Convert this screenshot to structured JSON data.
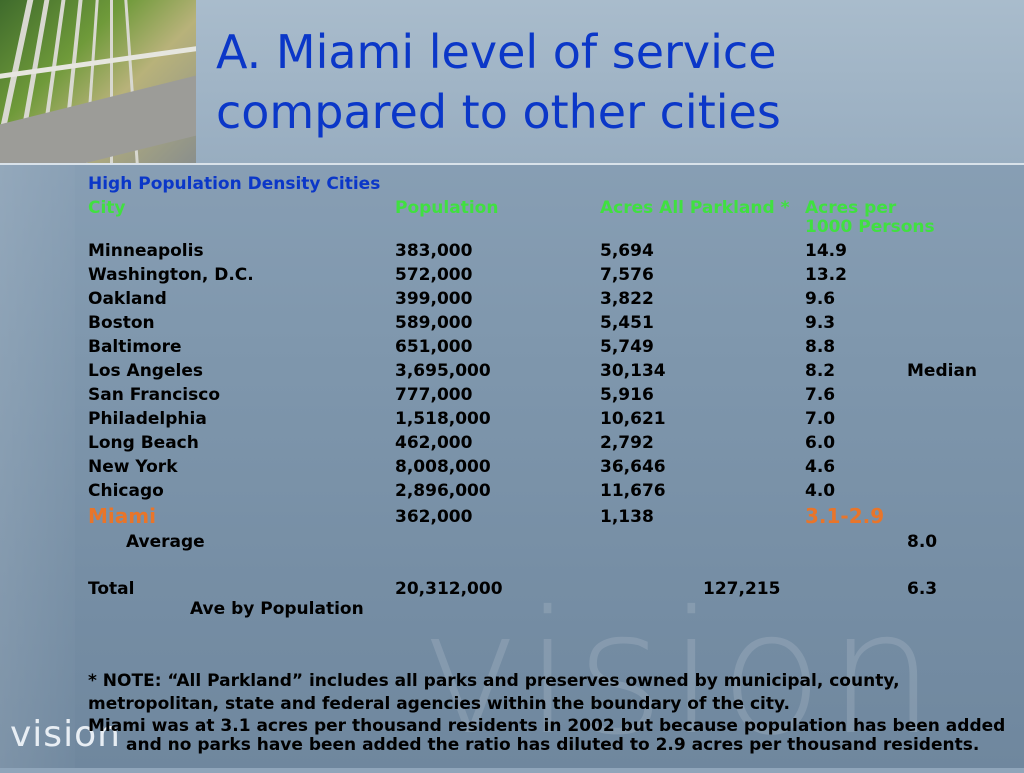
{
  "slide": {
    "title_line1": "A. Miami level of service",
    "title_line2": "compared to other cities",
    "logo": "vision",
    "watermark": "vision"
  },
  "table": {
    "section_heading": "High Population Density Cities",
    "headers": {
      "city": "City",
      "population": "Population",
      "acres": "Acres All Parkland *",
      "per_line1": "Acres per",
      "per_line2": "1000 Persons"
    },
    "rows": [
      {
        "city": "Minneapolis",
        "population": "383,000",
        "acres": "5,694",
        "per": "14.9",
        "note": ""
      },
      {
        "city": "Washington, D.C.",
        "population": "572,000",
        "acres": "7,576",
        "per": "13.2",
        "note": ""
      },
      {
        "city": "Oakland",
        "population": "399,000",
        "acres": "3,822",
        "per": "9.6",
        "note": ""
      },
      {
        "city": "Boston",
        "population": "589,000",
        "acres": "5,451",
        "per": "9.3",
        "note": ""
      },
      {
        "city": "Baltimore",
        "population": "651,000",
        "acres": "5,749",
        "per": "8.8",
        "note": ""
      },
      {
        "city": "Los Angeles",
        "population": "3,695,000",
        "acres": "30,134",
        "per": "8.2",
        "note": "Median"
      },
      {
        "city": "San Francisco",
        "population": "777,000",
        "acres": "5,916",
        "per": "7.6",
        "note": ""
      },
      {
        "city": "Philadelphia",
        "population": "1,518,000",
        "acres": "10,621",
        "per": "7.0",
        "note": ""
      },
      {
        "city": "Long Beach",
        "population": "462,000",
        "acres": "2,792",
        "per": "6.0",
        "note": ""
      },
      {
        "city": "New York",
        "population": "8,008,000",
        "acres": "36,646",
        "per": "4.6",
        "note": ""
      },
      {
        "city": "Chicago",
        "population": "2,896,000",
        "acres": "11,676",
        "per": "4.0",
        "note": ""
      }
    ],
    "miami": {
      "city": "Miami",
      "population": "362,000",
      "acres": "1,138",
      "per": "3.1-2.9"
    },
    "average": {
      "label": "Average",
      "value": "8.0"
    },
    "total": {
      "label": "Total",
      "population": "20,312,000",
      "acres": "127,215",
      "per": "6.3",
      "sublabel": "Ave by Population"
    }
  },
  "notes": {
    "line1": "* NOTE: “All Parkland” includes all parks and preserves owned by municipal, county,",
    "line2": "metropolitan, state and federal agencies within the boundary of the city.",
    "line3": "Miami was at 3.1 acres per thousand residents in 2002 but because population has been added and no parks have been added the ratio has diluted to 2.9 acres per thousand residents."
  },
  "colors": {
    "title": "#0b37c8",
    "header_green": "#40e040",
    "miami_orange": "#e8752a",
    "background": "#7f97ad"
  }
}
